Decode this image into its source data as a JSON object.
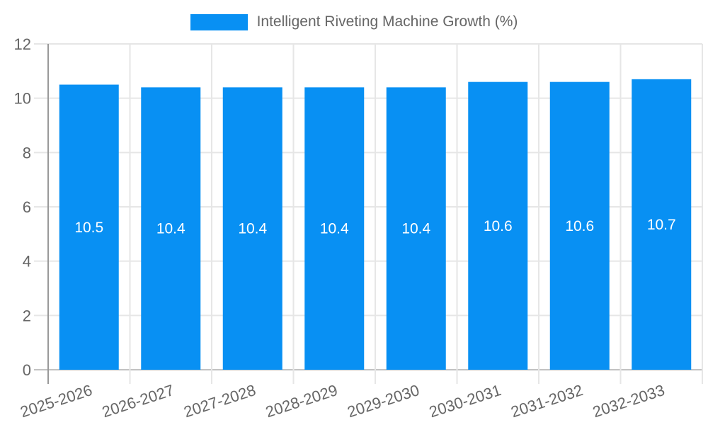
{
  "colors": {
    "bar": "#0890F3",
    "bar_label_text": "#FFFFFF",
    "axis_text": "#666666",
    "grid_line": "#E6E6E6",
    "axis_line_dark": "#999999",
    "zero_line": "#C2C2C2",
    "background": "#FFFFFF"
  },
  "chart_data": {
    "type": "bar",
    "title": "",
    "xlabel": "",
    "ylabel": "",
    "categories": [
      "2025-2026",
      "2026-2027",
      "2027-2028",
      "2028-2029",
      "2029-2030",
      "2030-2031",
      "2031-2032",
      "2032-2033"
    ],
    "series": [
      {
        "name": "Intelligent Riveting Machine Growth (%)",
        "values": [
          10.5,
          10.4,
          10.4,
          10.4,
          10.4,
          10.6,
          10.6,
          10.7
        ]
      }
    ],
    "bar_labels": [
      "10.5",
      "10.4",
      "10.4",
      "10.4",
      "10.4",
      "10.6",
      "10.6",
      "10.7"
    ],
    "ylim": [
      0,
      12
    ],
    "yticks": [
      0,
      2,
      4,
      6,
      8,
      10,
      12
    ],
    "grid": true,
    "legend_position": "top",
    "bar_label_position": "inside-middle",
    "x_label_rotation_deg": -18
  }
}
